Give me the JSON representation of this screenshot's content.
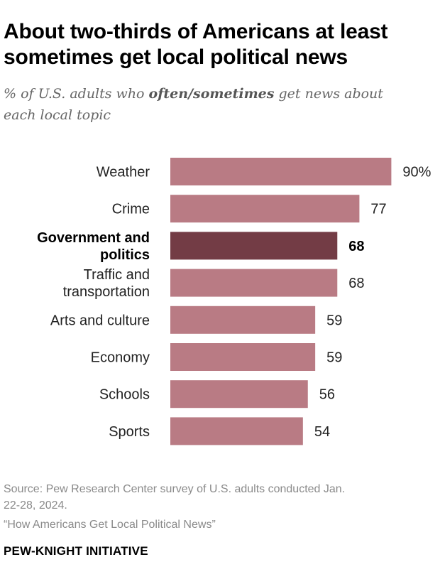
{
  "title_line1": "About two-thirds of Americans at least",
  "title_line2": "sometimes get local political news",
  "subtitle": {
    "prefix": "% of U.S. adults who ",
    "emphasis": "often/sometimes",
    "suffix_line1": " get news about",
    "line2": "each local topic"
  },
  "chart_data": {
    "type": "bar",
    "orientation": "horizontal",
    "title": "About two-thirds of Americans at least sometimes get local political news",
    "xlabel": "",
    "ylabel": "",
    "xlim": [
      0,
      100
    ],
    "categories": [
      [
        "Weather"
      ],
      [
        "Crime"
      ],
      [
        "Government and",
        "politics"
      ],
      [
        "Traffic and",
        "transportation"
      ],
      [
        "Arts and culture"
      ],
      [
        "Economy"
      ],
      [
        "Schools"
      ],
      [
        "Sports"
      ]
    ],
    "values": [
      90,
      77,
      68,
      68,
      59,
      59,
      56,
      54
    ],
    "value_labels": [
      "90%",
      "77",
      "68",
      "68",
      "59",
      "59",
      "56",
      "54"
    ],
    "highlight_index": 2,
    "colors": {
      "bar": "#b97b84",
      "highlight": "#733c45"
    }
  },
  "source_line1": "Source: Pew Research Center survey of U.S. adults conducted Jan.",
  "source_line2": "22-28, 2024.",
  "report": "“How Americans Get Local Political News”",
  "brand": "PEW-KNIGHT INITIATIVE"
}
